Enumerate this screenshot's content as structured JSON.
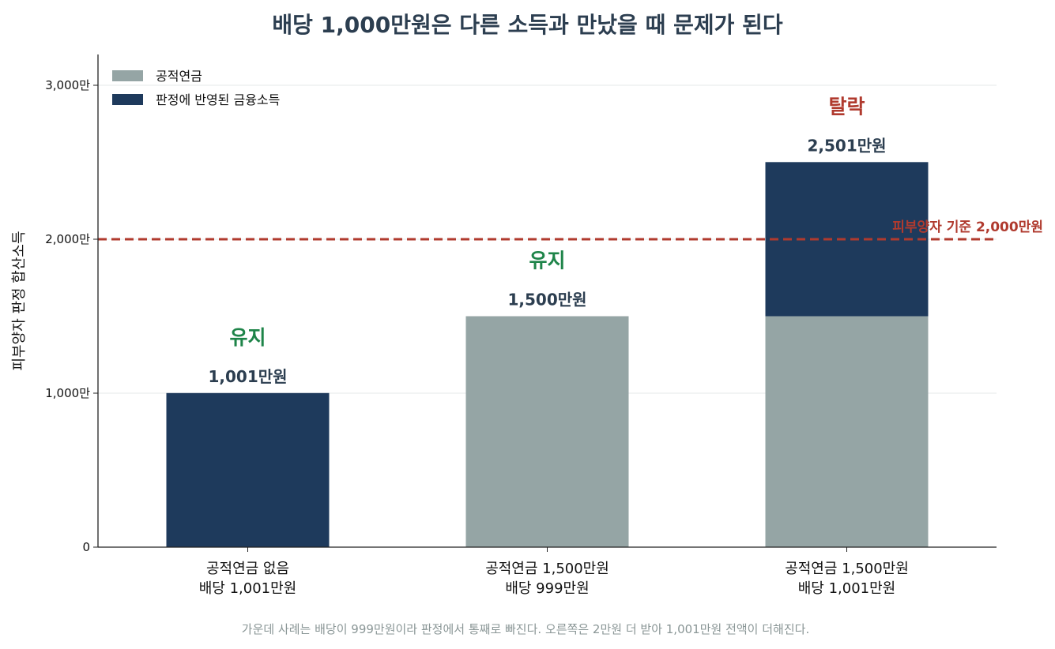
{
  "title": "배당 1,000만원은 다른 소득과 만났을 때 문제가 된다",
  "footnote": "가운데 사례는 배당이 999만원이라 판정에서 통째로 빠진다. 오른쪽은 2만원 더 받아 1,001만원 전액이 더해진다.",
  "chart_data": {
    "type": "bar",
    "stacked": true,
    "title": "배당 1,000만원은 다른 소득과 만났을 때 문제가 된다",
    "xlabel": "",
    "ylabel": "피부양자 판정 합산소득",
    "ylim": [
      0,
      3200
    ],
    "yticks": [
      0,
      1000,
      2000,
      3000
    ],
    "ytick_labels": [
      "0",
      "1,000만",
      "2,000만",
      "3,000만"
    ],
    "grid": true,
    "legend_position": "top-left",
    "categories": [
      [
        "공적연금 없음",
        "배당 1,001만원"
      ],
      [
        "공적연금 1,500만원",
        "배당 999만원"
      ],
      [
        "공적연금 1,500만원",
        "배당 1,001만원"
      ]
    ],
    "series": [
      {
        "name": "공적연금",
        "color": "#95a5a5",
        "values": [
          0,
          1500,
          1500
        ]
      },
      {
        "name": "판정에 반영된 금융소득",
        "color": "#1e3a5c",
        "values": [
          1001,
          0,
          1001
        ]
      }
    ],
    "totals": [
      1001,
      1500,
      2501
    ],
    "total_labels": [
      "1,001만원",
      "1,500만원",
      "2,501만원"
    ],
    "status_labels": [
      "유지",
      "유지",
      "탈락"
    ],
    "status_colors": [
      "#1e8449",
      "#1e8449",
      "#b03a2e"
    ],
    "threshold": {
      "value": 2000,
      "label": "피부양자 기준 2,000만원",
      "color": "#b03a2e"
    }
  }
}
